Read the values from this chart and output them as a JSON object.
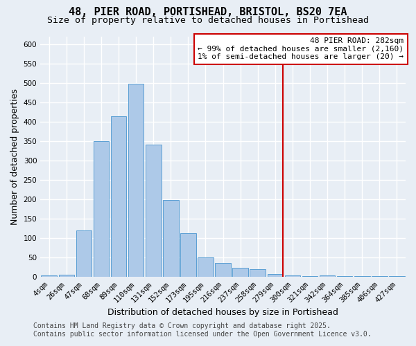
{
  "title_line1": "48, PIER ROAD, PORTISHEAD, BRISTOL, BS20 7EA",
  "title_line2": "Size of property relative to detached houses in Portishead",
  "xlabel": "Distribution of detached houses by size in Portishead",
  "ylabel": "Number of detached properties",
  "bar_color": "#adc9e8",
  "bar_edge_color": "#5a9fd4",
  "background_color": "#e8eef5",
  "grid_color": "#ffffff",
  "categories": [
    "4sqm",
    "26sqm",
    "47sqm",
    "68sqm",
    "89sqm",
    "110sqm",
    "131sqm",
    "152sqm",
    "173sqm",
    "195sqm",
    "216sqm",
    "237sqm",
    "258sqm",
    "279sqm",
    "300sqm",
    "321sqm",
    "342sqm",
    "364sqm",
    "385sqm",
    "406sqm",
    "427sqm"
  ],
  "values": [
    5,
    7,
    120,
    350,
    415,
    498,
    342,
    198,
    113,
    50,
    37,
    24,
    20,
    8,
    4,
    2,
    4,
    2,
    2,
    2,
    2
  ],
  "ylim": [
    0,
    620
  ],
  "yticks": [
    0,
    50,
    100,
    150,
    200,
    250,
    300,
    350,
    400,
    450,
    500,
    550,
    600
  ],
  "vline_index": 13,
  "vline_color": "#cc0000",
  "annotation_line1": "48 PIER ROAD: 282sqm",
  "annotation_line2": "← 99% of detached houses are smaller (2,160)",
  "annotation_line3": "1% of semi-detached houses are larger (20) →",
  "annotation_box_color": "#ffffff",
  "annotation_border_color": "#cc0000",
  "footer_line1": "Contains HM Land Registry data © Crown copyright and database right 2025.",
  "footer_line2": "Contains public sector information licensed under the Open Government Licence v3.0.",
  "title_fontsize": 11,
  "subtitle_fontsize": 9.5,
  "axis_label_fontsize": 9,
  "tick_fontsize": 7.5,
  "annotation_fontsize": 8,
  "footer_fontsize": 7
}
